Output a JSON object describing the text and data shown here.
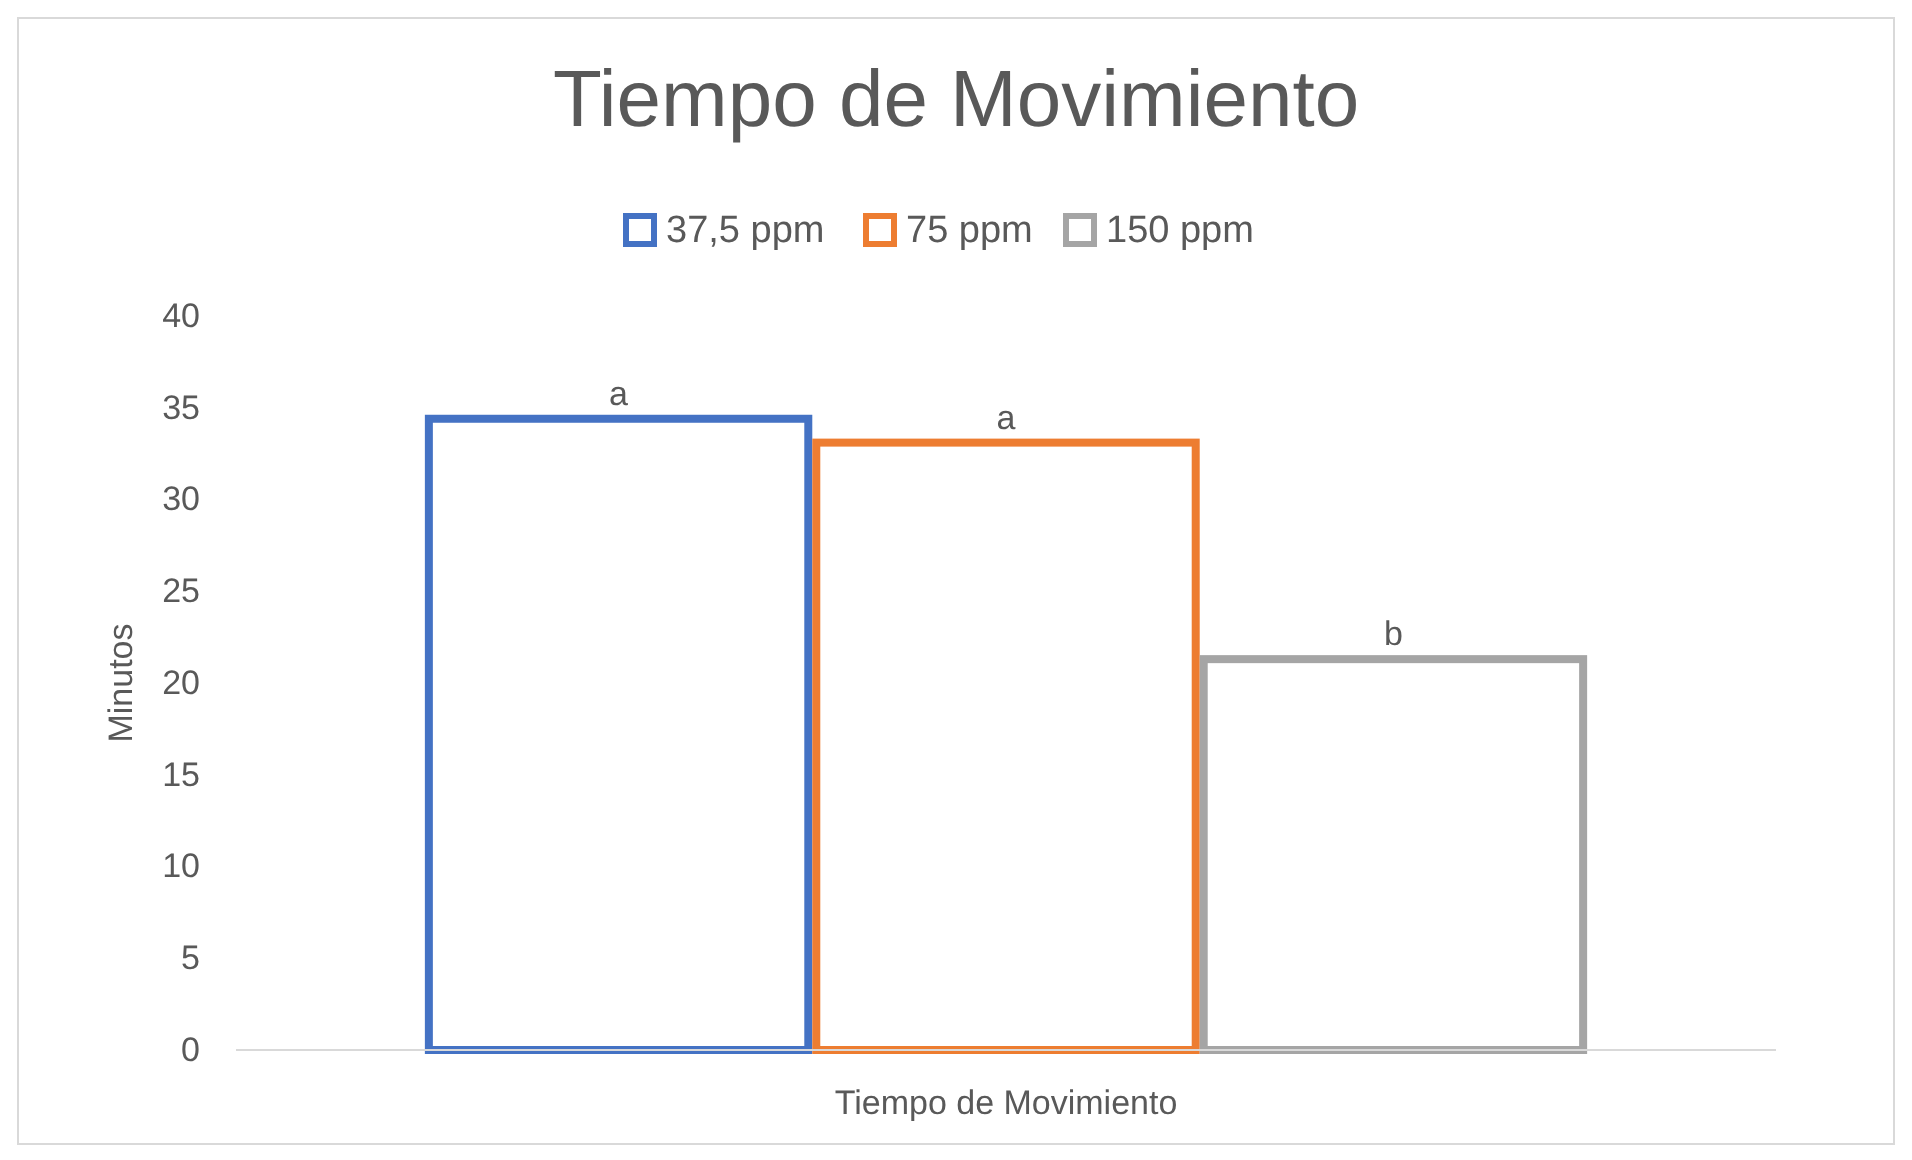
{
  "chart_data": {
    "type": "bar",
    "title": "Tiempo de Movimiento",
    "ylabel": "Minutos",
    "categories": [
      "Tiempo de Movimiento"
    ],
    "series": [
      {
        "name": "37,5 ppm",
        "color": "#4472c4",
        "values": [
          34.4
        ],
        "value_labels": [
          "a"
        ]
      },
      {
        "name": "75 ppm",
        "color": "#ed7d31",
        "values": [
          33.1
        ],
        "value_labels": [
          "a"
        ]
      },
      {
        "name": "150 ppm",
        "color": "#a5a5a5",
        "values": [
          21.3
        ],
        "value_labels": [
          "b"
        ]
      }
    ],
    "ylim": [
      0,
      40
    ],
    "yticks": [
      0,
      5,
      10,
      15,
      20,
      25,
      30,
      35,
      40
    ],
    "grid": false,
    "legend": "top"
  }
}
